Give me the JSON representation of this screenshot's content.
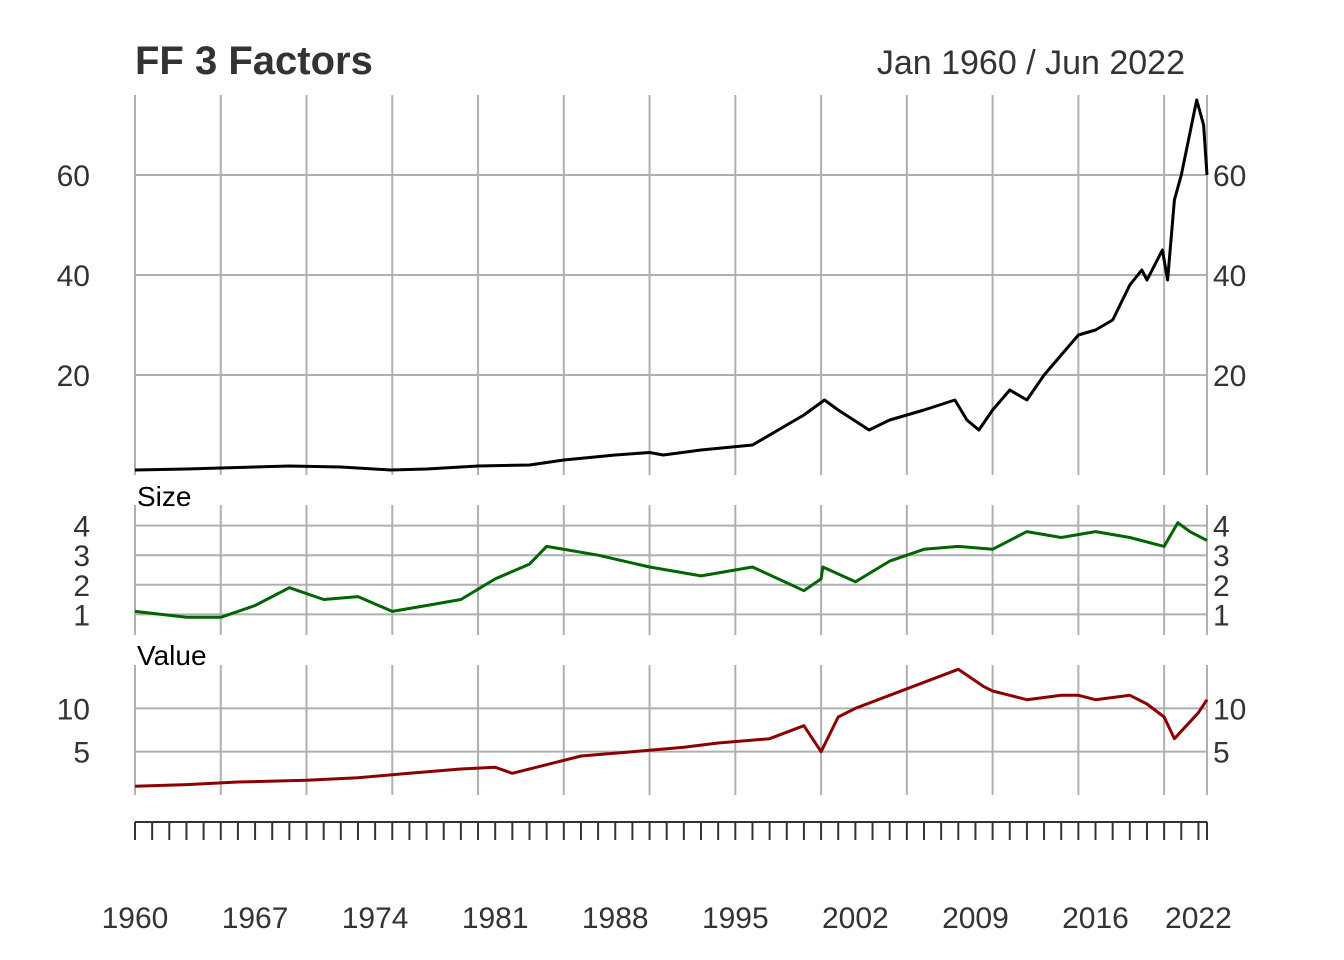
{
  "chart_data": {
    "type": "line",
    "title": "FF 3 Factors",
    "date_range": "Jan 1960 / Jun 2022",
    "x_start": 1960.0,
    "x_end": 2022.5,
    "x_tick_labels": [
      "1960",
      "1967",
      "1974",
      "1981",
      "1988",
      "1995",
      "2002",
      "2009",
      "2016",
      "2022"
    ],
    "grid": true,
    "panels": [
      {
        "name": "",
        "color": "#000000",
        "ylim": [
          0,
          76
        ],
        "yticks": [
          20,
          40,
          60
        ],
        "x": [
          1960,
          1963,
          1966,
          1969,
          1972,
          1974.9,
          1977,
          1980,
          1983,
          1985,
          1988,
          1990,
          1990.8,
          1993,
          1996,
          1997.5,
          1999,
          2000.2,
          2001,
          2002.8,
          2004,
          2006,
          2007.8,
          2008.5,
          2009.2,
          2010,
          2011,
          2012,
          2013,
          2014,
          2015,
          2016,
          2017,
          2018,
          2018.7,
          2019,
          2019.9,
          2020.2,
          2020.6,
          2021,
          2021.9,
          2022.3,
          2022.5
        ],
        "values": [
          1,
          1.2,
          1.5,
          1.8,
          1.6,
          1,
          1.2,
          1.8,
          2,
          3,
          4,
          4.5,
          4,
          5,
          6,
          9,
          12,
          15,
          13,
          9,
          11,
          13,
          15,
          11,
          9,
          13,
          17,
          15,
          20,
          24,
          28,
          29,
          31,
          38,
          41,
          39,
          45,
          39,
          55,
          60,
          75,
          70,
          60
        ]
      },
      {
        "name": "Size",
        "color": "#006400",
        "ylim": [
          0.3,
          4.7
        ],
        "yticks": [
          1,
          2,
          3,
          4
        ],
        "x": [
          1960,
          1963,
          1965,
          1967,
          1969,
          1971,
          1973,
          1975,
          1977,
          1979,
          1981,
          1983,
          1984,
          1987,
          1990,
          1993,
          1996,
          1999,
          2000,
          2000.1,
          2002,
          2004,
          2006,
          2008,
          2010,
          2012,
          2014,
          2016,
          2018,
          2020,
          2020.8,
          2021.5,
          2022.5
        ],
        "values": [
          1.1,
          0.9,
          0.9,
          1.3,
          1.9,
          1.5,
          1.6,
          1.1,
          1.3,
          1.5,
          2.2,
          2.7,
          3.3,
          3,
          2.6,
          2.3,
          2.6,
          1.8,
          2.2,
          2.6,
          2.1,
          2.8,
          3.2,
          3.3,
          3.2,
          3.8,
          3.6,
          3.8,
          3.6,
          3.3,
          4.1,
          3.8,
          3.5
        ]
      },
      {
        "name": "Value",
        "color": "#8b0000",
        "ylim": [
          0,
          15
        ],
        "yticks": [
          5,
          10
        ],
        "x": [
          1960,
          1963,
          1966,
          1970,
          1973,
          1976,
          1979,
          1981,
          1982,
          1984,
          1986,
          1989,
          1992,
          1994,
          1997,
          1999,
          2000,
          2001,
          2002,
          2004,
          2006,
          2008,
          2009.5,
          2010,
          2011,
          2012,
          2014,
          2015,
          2016,
          2018,
          2019,
          2020,
          2020.6,
          2021.3,
          2022,
          2022.5
        ],
        "values": [
          1,
          1.2,
          1.5,
          1.7,
          2,
          2.5,
          3,
          3.2,
          2.5,
          3.5,
          4.5,
          5,
          5.5,
          6,
          6.5,
          8,
          5,
          9,
          10,
          11.5,
          13,
          14.5,
          12.5,
          12,
          11.5,
          11,
          11.5,
          11.5,
          11,
          11.5,
          10.5,
          9,
          6.5,
          8,
          9.5,
          11
        ]
      }
    ]
  }
}
